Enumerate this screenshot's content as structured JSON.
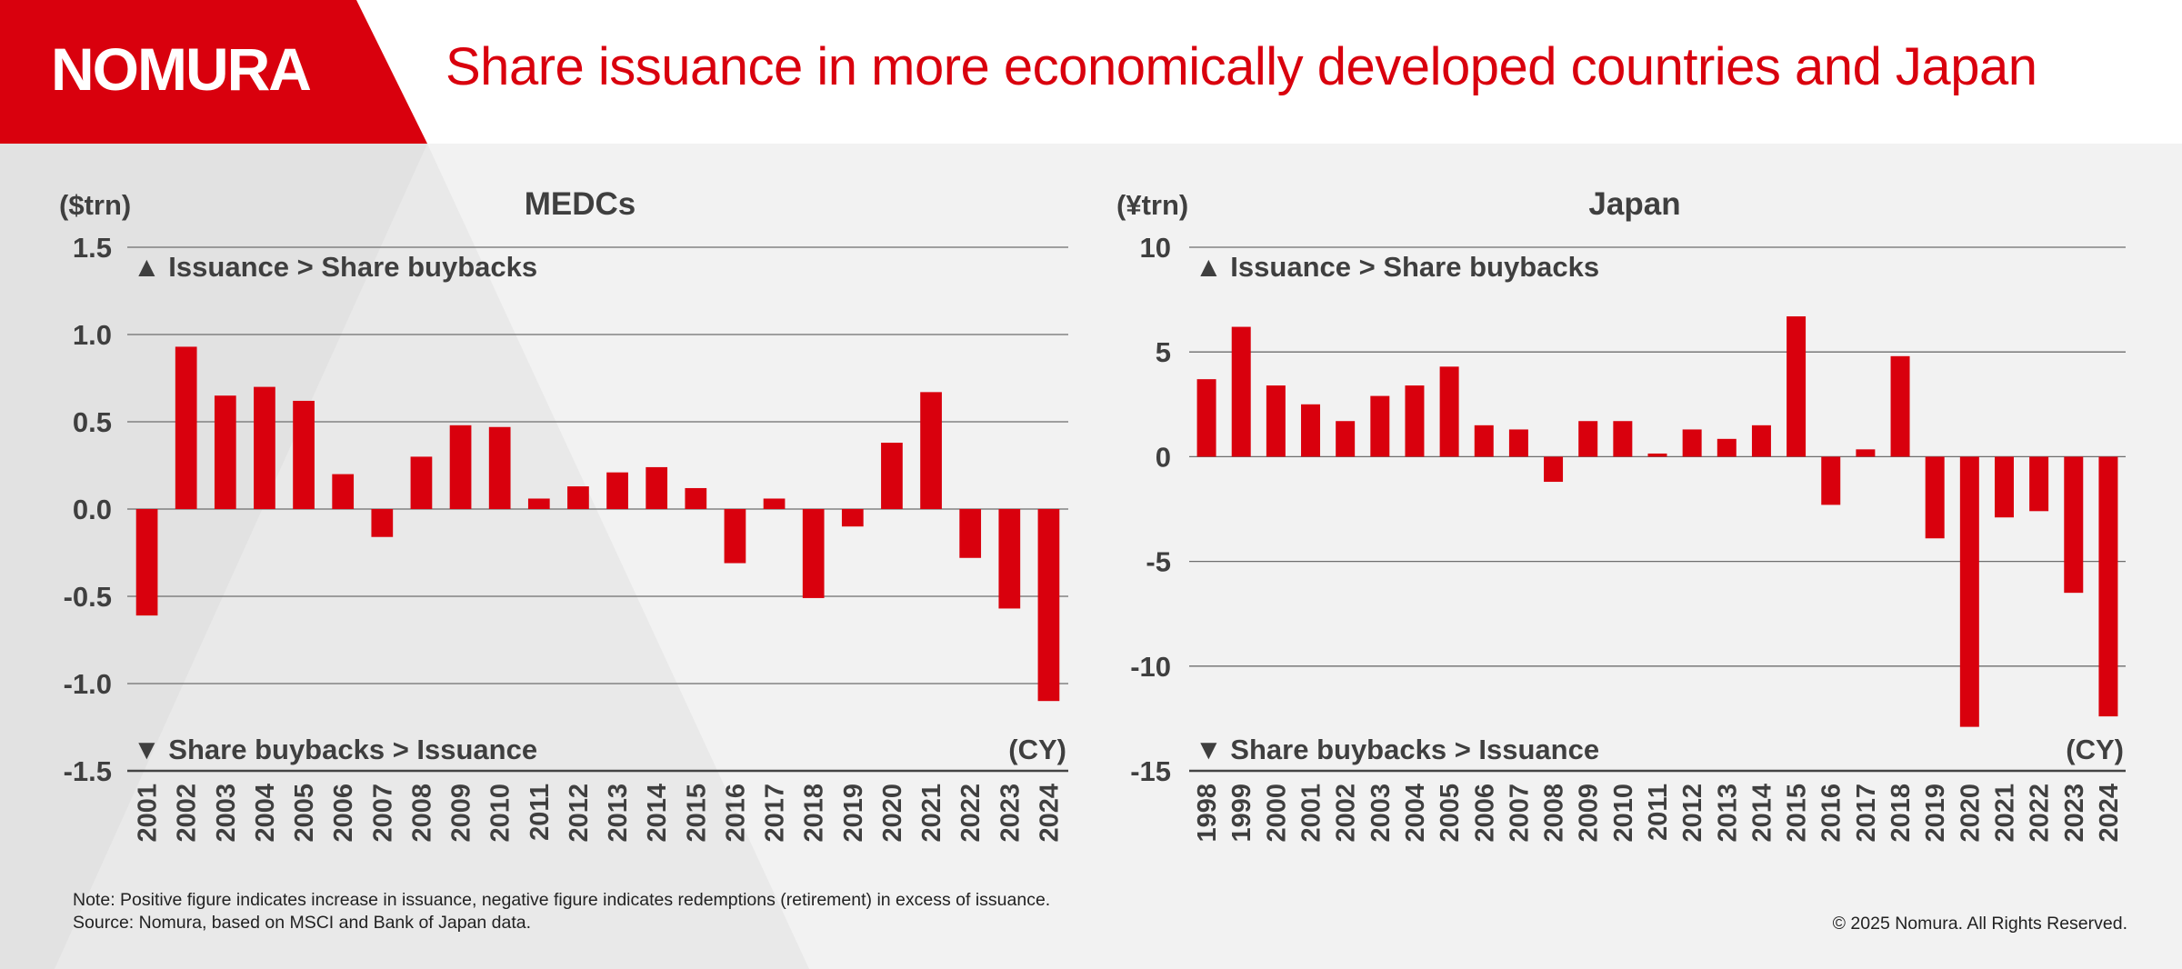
{
  "brand": {
    "logo_text": "NOMURA",
    "red": "#d9000d"
  },
  "title": "Share issuance in more economically developed countries and Japan",
  "chart_data": [
    {
      "type": "bar",
      "title": "MEDCs",
      "unit_label": "($trn)",
      "x_unit_label": "(CY)",
      "annotation_top": "▲ Issuance > Share buybacks",
      "annotation_bottom": "▼ Share buybacks > Issuance",
      "ylim": [
        -1.5,
        1.5
      ],
      "yticks": [
        "1.5",
        "1.0",
        "0.5",
        "0.0",
        "-0.5",
        "-1.0",
        "-1.5"
      ],
      "ytick_values": [
        1.5,
        1.0,
        0.5,
        0.0,
        -0.5,
        -1.0,
        -1.5
      ],
      "grid": true,
      "bar_color": "#d9000d",
      "categories": [
        "2001",
        "2002",
        "2003",
        "2004",
        "2005",
        "2006",
        "2007",
        "2008",
        "2009",
        "2010",
        "2011",
        "2012",
        "2013",
        "2014",
        "2015",
        "2016",
        "2017",
        "2018",
        "2019",
        "2020",
        "2021",
        "2022",
        "2023",
        "2024"
      ],
      "values": [
        -0.61,
        0.93,
        0.65,
        0.7,
        0.62,
        0.2,
        -0.16,
        0.3,
        0.48,
        0.47,
        0.06,
        0.13,
        0.21,
        0.24,
        0.12,
        -0.31,
        0.06,
        -0.51,
        -0.1,
        0.38,
        0.67,
        -0.28,
        -0.57,
        -1.1
      ]
    },
    {
      "type": "bar",
      "title": "Japan",
      "unit_label": "(¥trn)",
      "x_unit_label": "(CY)",
      "annotation_top": "▲ Issuance > Share buybacks",
      "annotation_bottom": "▼ Share buybacks > Issuance",
      "ylim": [
        -15,
        10
      ],
      "yticks": [
        "10",
        "5",
        "0",
        "-5",
        "-10",
        "-15"
      ],
      "ytick_values": [
        10,
        5,
        0,
        -5,
        -10,
        -15
      ],
      "grid": true,
      "bar_color": "#d9000d",
      "categories": [
        "1998",
        "1999",
        "2000",
        "2001",
        "2002",
        "2003",
        "2004",
        "2005",
        "2006",
        "2007",
        "2008",
        "2009",
        "2010",
        "2011",
        "2012",
        "2013",
        "2014",
        "2015",
        "2016",
        "2017",
        "2018",
        "2019",
        "2020",
        "2021",
        "2022",
        "2023",
        "2024"
      ],
      "values": [
        3.7,
        6.2,
        3.4,
        2.5,
        1.7,
        2.9,
        3.4,
        4.3,
        1.5,
        1.3,
        -1.2,
        1.7,
        1.7,
        0.15,
        1.3,
        0.85,
        1.5,
        6.7,
        -2.3,
        0.35,
        4.8,
        -3.9,
        -12.9,
        -2.9,
        -2.6,
        -6.5,
        -12.4
      ]
    }
  ],
  "footnote": {
    "note": "Note: Positive figure indicates increase in issuance, negative figure indicates redemptions (retirement) in excess of issuance.",
    "source": "Source: Nomura, based on MSCI and Bank of Japan data."
  },
  "copyright": "© 2025 Nomura. All Rights Reserved."
}
